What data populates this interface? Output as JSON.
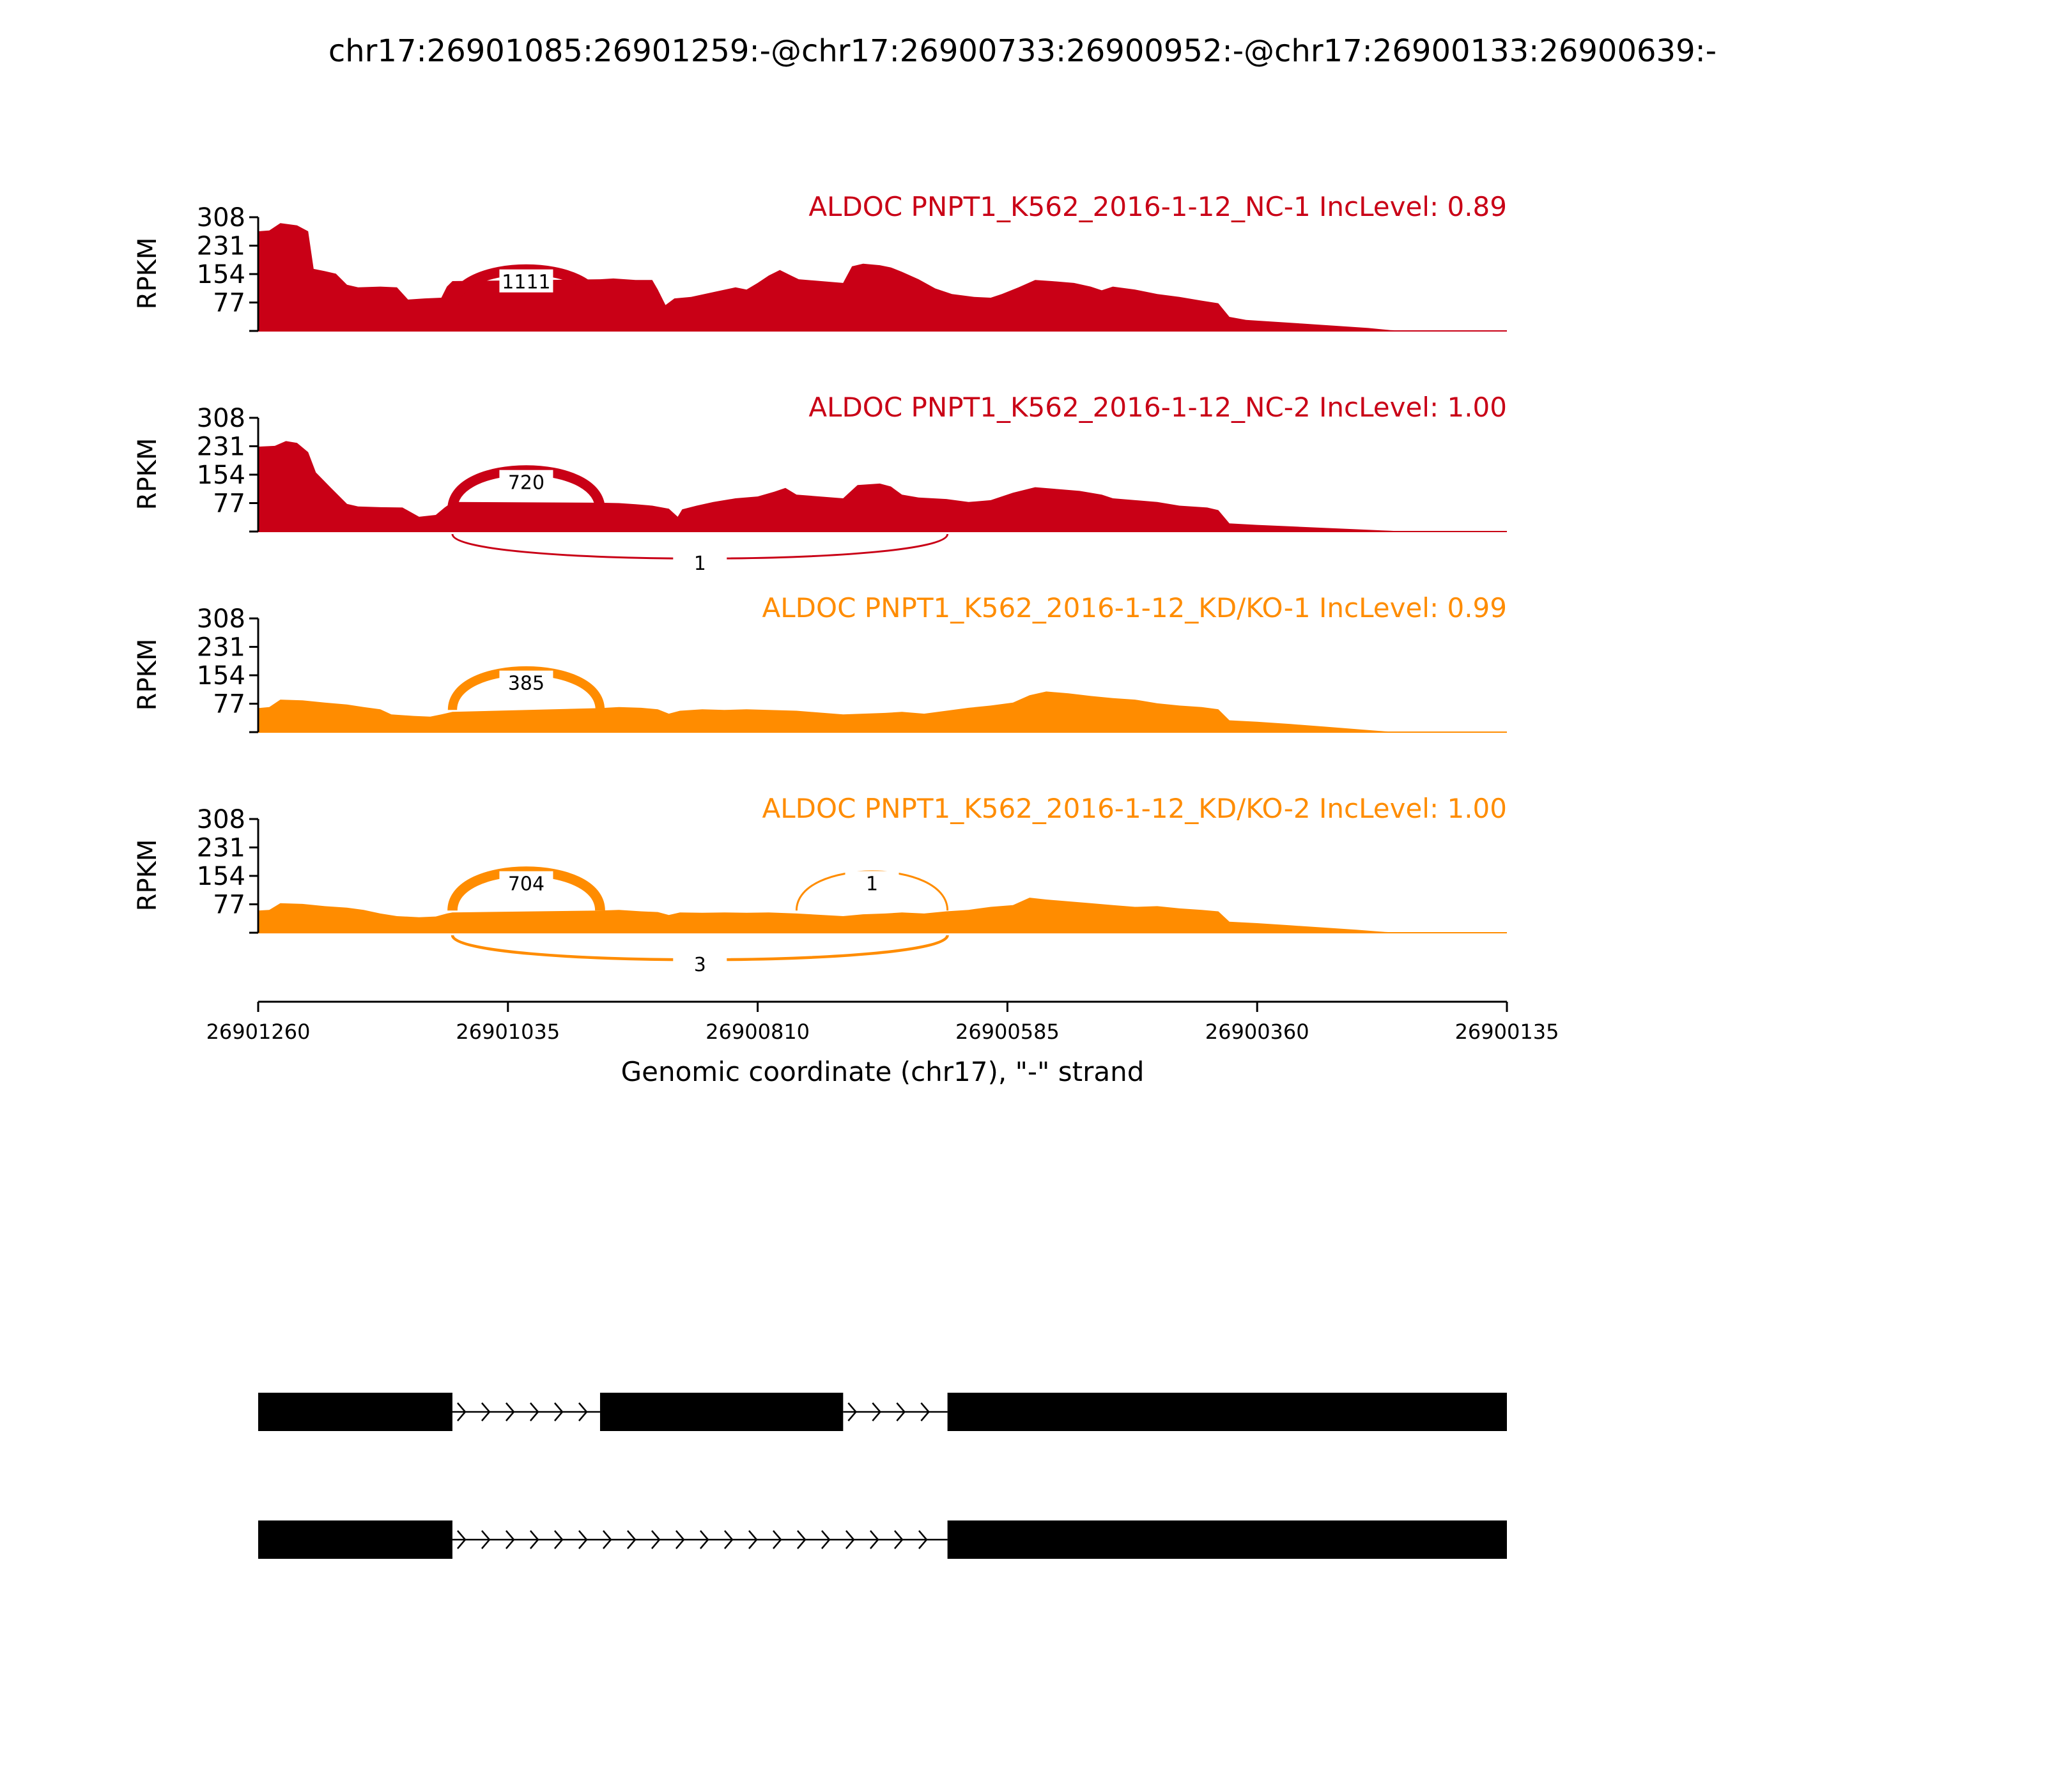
{
  "title": "chr17:26901085:26901259:-@chr17:26900733:26900952:-@chr17:26900133:26900639:-",
  "chart_data": {
    "type": "area",
    "subtype": "sashimi",
    "x_axis": {
      "label": "Genomic coordinate (chr17), \"-\" strand",
      "range": [
        26901260,
        26900135
      ],
      "reversed": true,
      "ticks": [
        26901260,
        26901035,
        26900810,
        26900585,
        26900360,
        26900135
      ],
      "tick_labels": [
        "26901260",
        "26901035",
        "26900810",
        "26900585",
        "26900360",
        "26900135"
      ]
    },
    "y_axis": {
      "label": "RPKM",
      "range": [
        0,
        308
      ],
      "ticks": [
        77,
        154,
        231,
        308
      ],
      "tick_labels": [
        "77",
        "154",
        "231",
        "308"
      ]
    },
    "colors": {
      "nc": "#c90016",
      "kd": "#ff8c00"
    },
    "tracks": [
      {
        "label": "ALDOC PNPT1_K562_2016-1-12_NC-1 IncLevel: 0.89",
        "color": "#c90016",
        "coverage": [
          [
            26901260,
            270
          ],
          [
            26901250,
            272
          ],
          [
            26901240,
            292
          ],
          [
            26901225,
            286
          ],
          [
            26901215,
            270
          ],
          [
            26901210,
            168
          ],
          [
            26901200,
            162
          ],
          [
            26901190,
            155
          ],
          [
            26901180,
            125
          ],
          [
            26901170,
            118
          ],
          [
            26901150,
            120
          ],
          [
            26901135,
            118
          ],
          [
            26901125,
            85
          ],
          [
            26901110,
            88
          ],
          [
            26901095,
            90
          ],
          [
            26901090,
            120
          ],
          [
            26901085,
            135
          ],
          [
            26900952,
            140
          ],
          [
            26900940,
            142
          ],
          [
            26900920,
            138
          ],
          [
            26900905,
            138
          ],
          [
            26900900,
            112
          ],
          [
            26900893,
            70
          ],
          [
            26900885,
            88
          ],
          [
            26900870,
            92
          ],
          [
            26900850,
            105
          ],
          [
            26900830,
            118
          ],
          [
            26900820,
            112
          ],
          [
            26900810,
            130
          ],
          [
            26900800,
            150
          ],
          [
            26900790,
            165
          ],
          [
            26900780,
            150
          ],
          [
            26900773,
            140
          ],
          [
            26900733,
            130
          ],
          [
            26900725,
            175
          ],
          [
            26900715,
            182
          ],
          [
            26900700,
            178
          ],
          [
            26900690,
            172
          ],
          [
            26900680,
            160
          ],
          [
            26900665,
            140
          ],
          [
            26900650,
            115
          ],
          [
            26900635,
            100
          ],
          [
            26900615,
            92
          ],
          [
            26900600,
            90
          ],
          [
            26900590,
            100
          ],
          [
            26900575,
            118
          ],
          [
            26900560,
            138
          ],
          [
            26900545,
            135
          ],
          [
            26900525,
            130
          ],
          [
            26900510,
            120
          ],
          [
            26900500,
            110
          ],
          [
            26900490,
            120
          ],
          [
            26900470,
            112
          ],
          [
            26900450,
            100
          ],
          [
            26900430,
            92
          ],
          [
            26900410,
            82
          ],
          [
            26900395,
            75
          ],
          [
            26900385,
            38
          ],
          [
            26900370,
            30
          ],
          [
            26900350,
            26
          ],
          [
            26900320,
            20
          ],
          [
            26900290,
            14
          ],
          [
            26900260,
            8
          ],
          [
            26900240,
            2
          ],
          [
            26900220,
            0
          ]
        ],
        "junctions": [
          {
            "from": 26901085,
            "to": 26900952,
            "count": 1111,
            "side": "above"
          }
        ]
      },
      {
        "label": "ALDOC PNPT1_K562_2016-1-12_NC-2 IncLevel: 1.00",
        "color": "#c90016",
        "coverage": [
          [
            26901260,
            230
          ],
          [
            26901245,
            232
          ],
          [
            26901235,
            245
          ],
          [
            26901225,
            240
          ],
          [
            26901215,
            215
          ],
          [
            26901208,
            160
          ],
          [
            26901195,
            120
          ],
          [
            26901180,
            75
          ],
          [
            26901170,
            68
          ],
          [
            26901150,
            66
          ],
          [
            26901130,
            65
          ],
          [
            26901115,
            40
          ],
          [
            26901100,
            45
          ],
          [
            26901092,
            65
          ],
          [
            26901085,
            80
          ],
          [
            26900952,
            78
          ],
          [
            26900935,
            77
          ],
          [
            26900920,
            74
          ],
          [
            26900905,
            70
          ],
          [
            26900890,
            62
          ],
          [
            26900882,
            40
          ],
          [
            26900878,
            60
          ],
          [
            26900865,
            70
          ],
          [
            26900850,
            80
          ],
          [
            26900830,
            90
          ],
          [
            26900810,
            95
          ],
          [
            26900795,
            108
          ],
          [
            26900785,
            118
          ],
          [
            26900775,
            100
          ],
          [
            26900733,
            90
          ],
          [
            26900720,
            126
          ],
          [
            26900700,
            130
          ],
          [
            26900690,
            122
          ],
          [
            26900680,
            100
          ],
          [
            26900665,
            92
          ],
          [
            26900640,
            88
          ],
          [
            26900620,
            80
          ],
          [
            26900600,
            85
          ],
          [
            26900580,
            105
          ],
          [
            26900560,
            120
          ],
          [
            26900540,
            115
          ],
          [
            26900520,
            110
          ],
          [
            26900500,
            100
          ],
          [
            26900490,
            90
          ],
          [
            26900470,
            85
          ],
          [
            26900450,
            80
          ],
          [
            26900430,
            70
          ],
          [
            26900405,
            65
          ],
          [
            26900395,
            58
          ],
          [
            26900385,
            22
          ],
          [
            26900360,
            18
          ],
          [
            26900330,
            14
          ],
          [
            26900300,
            10
          ],
          [
            26900270,
            6
          ],
          [
            26900240,
            2
          ],
          [
            26900225,
            0
          ]
        ],
        "junctions": [
          {
            "from": 26901085,
            "to": 26900952,
            "count": 720,
            "side": "above"
          },
          {
            "from": 26901085,
            "to": 26900639,
            "count": 1,
            "side": "below"
          }
        ]
      },
      {
        "label": "ALDOC PNPT1_K562_2016-1-12_KD/KO-1 IncLevel: 0.99",
        "color": "#ff8c00",
        "coverage": [
          [
            26901260,
            65
          ],
          [
            26901250,
            68
          ],
          [
            26901240,
            88
          ],
          [
            26901220,
            86
          ],
          [
            26901200,
            80
          ],
          [
            26901180,
            75
          ],
          [
            26901165,
            68
          ],
          [
            26901150,
            62
          ],
          [
            26901140,
            48
          ],
          [
            26901120,
            44
          ],
          [
            26901105,
            42
          ],
          [
            26901095,
            48
          ],
          [
            26901085,
            55
          ],
          [
            26900952,
            65
          ],
          [
            26900935,
            68
          ],
          [
            26900915,
            66
          ],
          [
            26900900,
            62
          ],
          [
            26900890,
            50
          ],
          [
            26900880,
            58
          ],
          [
            26900860,
            62
          ],
          [
            26900840,
            60
          ],
          [
            26900820,
            62
          ],
          [
            26900800,
            60
          ],
          [
            26900775,
            58
          ],
          [
            26900733,
            48
          ],
          [
            26900715,
            50
          ],
          [
            26900695,
            52
          ],
          [
            26900680,
            55
          ],
          [
            26900660,
            50
          ],
          [
            26900640,
            58
          ],
          [
            26900620,
            66
          ],
          [
            26900600,
            72
          ],
          [
            26900580,
            80
          ],
          [
            26900565,
            100
          ],
          [
            26900550,
            110
          ],
          [
            26900530,
            105
          ],
          [
            26900510,
            98
          ],
          [
            26900490,
            92
          ],
          [
            26900470,
            88
          ],
          [
            26900450,
            78
          ],
          [
            26900430,
            72
          ],
          [
            26900410,
            68
          ],
          [
            26900395,
            62
          ],
          [
            26900385,
            32
          ],
          [
            26900360,
            28
          ],
          [
            26900330,
            22
          ],
          [
            26900300,
            15
          ],
          [
            26900270,
            8
          ],
          [
            26900245,
            2
          ],
          [
            26900230,
            0
          ]
        ],
        "junctions": [
          {
            "from": 26901085,
            "to": 26900952,
            "count": 385,
            "side": "above"
          }
        ]
      },
      {
        "label": "ALDOC PNPT1_K562_2016-1-12_KD/KO-2 IncLevel: 1.00",
        "color": "#ff8c00",
        "coverage": [
          [
            26901260,
            60
          ],
          [
            26901250,
            62
          ],
          [
            26901240,
            80
          ],
          [
            26901220,
            78
          ],
          [
            26901200,
            72
          ],
          [
            26901180,
            68
          ],
          [
            26901165,
            62
          ],
          [
            26901150,
            52
          ],
          [
            26901135,
            45
          ],
          [
            26901115,
            42
          ],
          [
            26901100,
            44
          ],
          [
            26901090,
            52
          ],
          [
            26901085,
            55
          ],
          [
            26900952,
            60
          ],
          [
            26900935,
            62
          ],
          [
            26900915,
            58
          ],
          [
            26900900,
            56
          ],
          [
            26900890,
            48
          ],
          [
            26900880,
            55
          ],
          [
            26900860,
            54
          ],
          [
            26900840,
            55
          ],
          [
            26900820,
            54
          ],
          [
            26900800,
            55
          ],
          [
            26900775,
            52
          ],
          [
            26900733,
            45
          ],
          [
            26900715,
            50
          ],
          [
            26900695,
            52
          ],
          [
            26900680,
            55
          ],
          [
            26900660,
            52
          ],
          [
            26900640,
            58
          ],
          [
            26900620,
            62
          ],
          [
            26900600,
            70
          ],
          [
            26900580,
            75
          ],
          [
            26900565,
            95
          ],
          [
            26900550,
            90
          ],
          [
            26900530,
            85
          ],
          [
            26900510,
            80
          ],
          [
            26900490,
            75
          ],
          [
            26900470,
            70
          ],
          [
            26900450,
            72
          ],
          [
            26900430,
            66
          ],
          [
            26900410,
            62
          ],
          [
            26900395,
            58
          ],
          [
            26900385,
            30
          ],
          [
            26900360,
            26
          ],
          [
            26900330,
            20
          ],
          [
            26900300,
            14
          ],
          [
            26900270,
            8
          ],
          [
            26900245,
            2
          ],
          [
            26900230,
            0
          ]
        ],
        "junctions": [
          {
            "from": 26901085,
            "to": 26900952,
            "count": 704,
            "side": "above"
          },
          {
            "from": 26900775,
            "to": 26900639,
            "count": 1,
            "side": "above"
          },
          {
            "from": 26901085,
            "to": 26900639,
            "count": 3,
            "side": "below"
          }
        ]
      }
    ],
    "transcripts": [
      {
        "exons": [
          [
            26901260,
            26901085
          ],
          [
            26900952,
            26900733
          ],
          [
            26900639,
            26900133
          ]
        ],
        "strand": "-"
      },
      {
        "exons": [
          [
            26901260,
            26901085
          ],
          [
            26900639,
            26900133
          ]
        ],
        "strand": "-"
      }
    ]
  }
}
